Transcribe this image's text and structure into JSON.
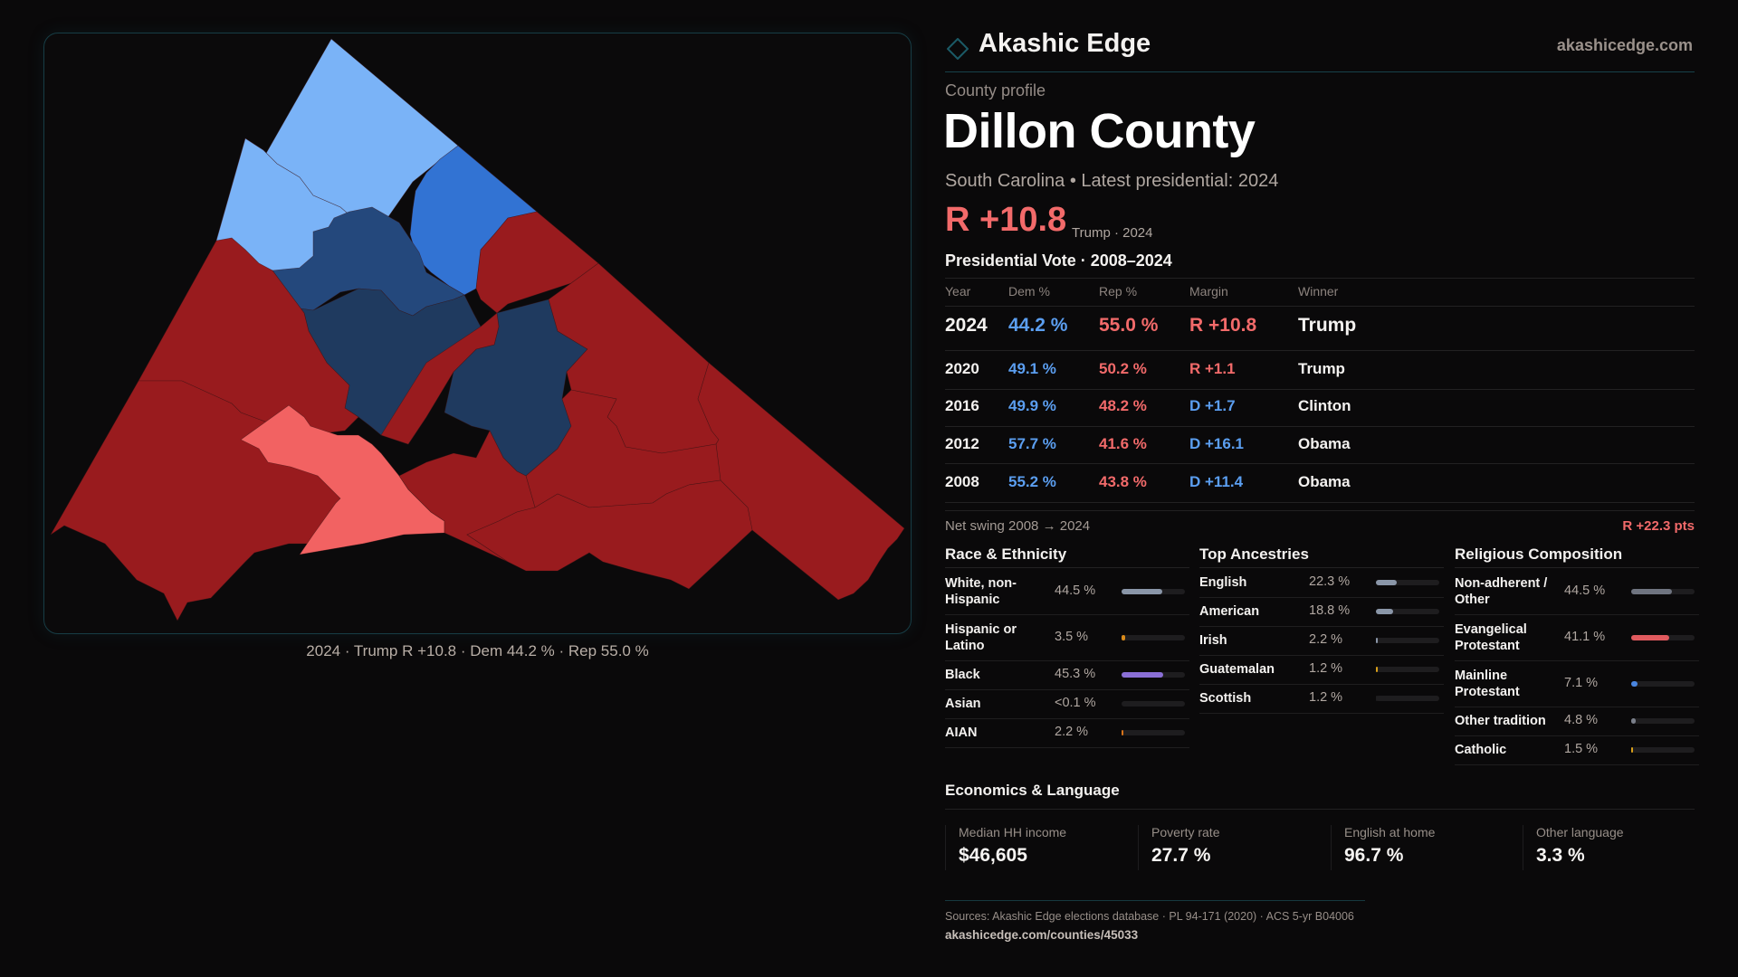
{
  "brand": {
    "name": "Akashic Edge",
    "url": "akashicedge.com",
    "accent": "#1b5a66"
  },
  "profile": {
    "eyebrow": "County profile",
    "title": "Dillon County",
    "subtitle": "South Carolina • Latest presidential: 2024",
    "margin": "R +10.8",
    "margin_note": "Trump · 2024"
  },
  "map": {
    "caption": "2024 · Trump R +10.8 · Dem 44.2 % · Rep 55.0 %",
    "colors": {
      "strong_r": "#991b1e",
      "lean_r": "#f26262",
      "strong_d": "#1f3a5f",
      "likely_d": "#24487c",
      "lean_d": "#3273d3",
      "tilt_d": "#7ab3f7"
    }
  },
  "vote": {
    "title": "Presidential Vote · 2008–2024",
    "headers": [
      "Year",
      "Dem %",
      "Rep %",
      "Margin",
      "Winner"
    ],
    "rows": [
      {
        "year": "2024",
        "dem": "44.2 %",
        "rep": "55.0 %",
        "margin": "R +10.8",
        "party": "r",
        "winner": "Trump"
      },
      {
        "year": "2020",
        "dem": "49.1 %",
        "rep": "50.2 %",
        "margin": "R +1.1",
        "party": "r",
        "winner": "Trump"
      },
      {
        "year": "2016",
        "dem": "49.9 %",
        "rep": "48.2 %",
        "margin": "D +1.7",
        "party": "d",
        "winner": "Clinton"
      },
      {
        "year": "2012",
        "dem": "57.7 %",
        "rep": "41.6 %",
        "margin": "D +16.1",
        "party": "d",
        "winner": "Obama"
      },
      {
        "year": "2008",
        "dem": "55.2 %",
        "rep": "43.8 %",
        "margin": "D +11.4",
        "party": "d",
        "winner": "Obama"
      }
    ],
    "swing_label": "Net swing 2008 → 2024",
    "swing_value": "R +22.3 pts"
  },
  "race": {
    "title": "Race & Ethnicity",
    "items": [
      {
        "label": "White, non-Hispanic",
        "value": "44.5 %",
        "pct": 44.5,
        "color": "#8a96a8"
      },
      {
        "label": "Hispanic or Latino",
        "value": "3.5 %",
        "pct": 3.5,
        "color": "#d98a1a"
      },
      {
        "label": "Black",
        "value": "45.3 %",
        "pct": 45.3,
        "color": "#8a6fd6"
      },
      {
        "label": "Asian",
        "value": "<0.1 %",
        "pct": 0.05,
        "color": "#3cbfa8"
      },
      {
        "label": "AIAN",
        "value": "2.2 %",
        "pct": 2.2,
        "color": "#d9741a"
      }
    ]
  },
  "ancestry": {
    "title": "Top Ancestries",
    "items": [
      {
        "label": "English",
        "value": "22.3 %",
        "pct": 22.3,
        "color": "#8a96a8"
      },
      {
        "label": "American",
        "value": "18.8 %",
        "pct": 18.8,
        "color": "#8a96a8"
      },
      {
        "label": "Irish",
        "value": "2.2 %",
        "pct": 2.2,
        "color": "#8a96a8"
      },
      {
        "label": "Guatemalan",
        "value": "1.2 %",
        "pct": 1.2,
        "color": "#d9a01a"
      },
      {
        "label": "Scottish",
        "value": "1.2 %",
        "pct": 1.2,
        "color": "#1e1d1f"
      }
    ]
  },
  "religion": {
    "title": "Religious Composition",
    "items": [
      {
        "label": "Non-adherent / Other",
        "value": "44.5 %",
        "pct": 44.5,
        "color": "#6f7480"
      },
      {
        "label": "Evangelical Protestant",
        "value": "41.1 %",
        "pct": 41.1,
        "color": "#e05a5e"
      },
      {
        "label": "Mainline Protestant",
        "value": "7.1 %",
        "pct": 7.1,
        "color": "#4a86e0"
      },
      {
        "label": "Other tradition",
        "value": "4.8 %",
        "pct": 4.8,
        "color": "#7a7f8a"
      },
      {
        "label": "Catholic",
        "value": "1.5 %",
        "pct": 1.5,
        "color": "#d9a01a"
      }
    ]
  },
  "economics": {
    "title": "Economics & Language",
    "stats": [
      {
        "label": "Median HH income",
        "value": "$46,605"
      },
      {
        "label": "Poverty rate",
        "value": "27.7 %"
      },
      {
        "label": "English at home",
        "value": "96.7 %"
      },
      {
        "label": "Other language",
        "value": "3.3 %"
      }
    ]
  },
  "footer": {
    "sources": "Sources: Akashic Edge elections database · PL 94-171 (2020) · ACS 5-yr B04006",
    "url": "akashicedge.com/counties/45033"
  }
}
